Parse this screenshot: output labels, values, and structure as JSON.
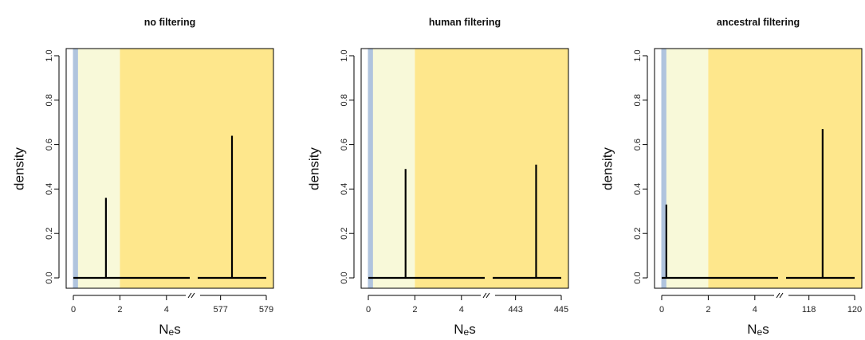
{
  "colors": {
    "neutral_band": "#b0c4de",
    "weak_band": "#f8f9d9",
    "strong_band": "#fee78c",
    "line": "#000000",
    "box": "#000000"
  },
  "chart_data": [
    {
      "type": "line",
      "title": "no filtering",
      "xlabel": "N",
      "xlabel_sub": "e",
      "xlabel_suffix": "s",
      "ylabel": "density",
      "ylim": [
        0,
        1
      ],
      "y_ticks": [
        "0.0",
        "0.2",
        "0.4",
        "0.6",
        "0.8",
        "1.0"
      ],
      "left_xlim": [
        0,
        5
      ],
      "left_x_ticks": [
        "0",
        "2",
        "4"
      ],
      "right_xlim": [
        576,
        579
      ],
      "right_x_ticks": [
        "577",
        "579"
      ],
      "bands": [
        {
          "name": "neutral",
          "from": 0,
          "to": 0.2
        },
        {
          "name": "weak",
          "from": 0.2,
          "to": 2
        },
        {
          "name": "strong",
          "from": 2,
          "to": 579
        }
      ],
      "spikes": [
        {
          "x": 1.4,
          "y": 0.36
        },
        {
          "x": 577.5,
          "y": 0.64
        }
      ]
    },
    {
      "type": "line",
      "title": "human filtering",
      "xlabel": "N",
      "xlabel_sub": "e",
      "xlabel_suffix": "s",
      "ylabel": "density",
      "ylim": [
        0,
        1
      ],
      "y_ticks": [
        "0.0",
        "0.2",
        "0.4",
        "0.6",
        "0.8",
        "1.0"
      ],
      "left_xlim": [
        0,
        5
      ],
      "left_x_ticks": [
        "0",
        "2",
        "4"
      ],
      "right_xlim": [
        442,
        445
      ],
      "right_x_ticks": [
        "443",
        "445"
      ],
      "bands": [
        {
          "name": "neutral",
          "from": 0,
          "to": 0.2
        },
        {
          "name": "weak",
          "from": 0.2,
          "to": 2
        },
        {
          "name": "strong",
          "from": 2,
          "to": 445
        }
      ],
      "spikes": [
        {
          "x": 1.6,
          "y": 0.49
        },
        {
          "x": 443.9,
          "y": 0.51
        }
      ]
    },
    {
      "type": "line",
      "title": "ancestral filtering",
      "xlabel": "N",
      "xlabel_sub": "e",
      "xlabel_suffix": "s",
      "ylabel": "density",
      "ylim": [
        0,
        1
      ],
      "y_ticks": [
        "0.0",
        "0.2",
        "0.4",
        "0.6",
        "0.8",
        "1.0"
      ],
      "left_xlim": [
        0,
        5
      ],
      "left_x_ticks": [
        "0",
        "2",
        "4"
      ],
      "right_xlim": [
        117,
        120
      ],
      "right_x_ticks": [
        "118",
        "120"
      ],
      "bands": [
        {
          "name": "neutral",
          "from": 0,
          "to": 0.2
        },
        {
          "name": "weak",
          "from": 0.2,
          "to": 2
        },
        {
          "name": "strong",
          "from": 2,
          "to": 120
        }
      ],
      "spikes": [
        {
          "x": 0.2,
          "y": 0.33
        },
        {
          "x": 118.6,
          "y": 0.67
        }
      ]
    }
  ]
}
